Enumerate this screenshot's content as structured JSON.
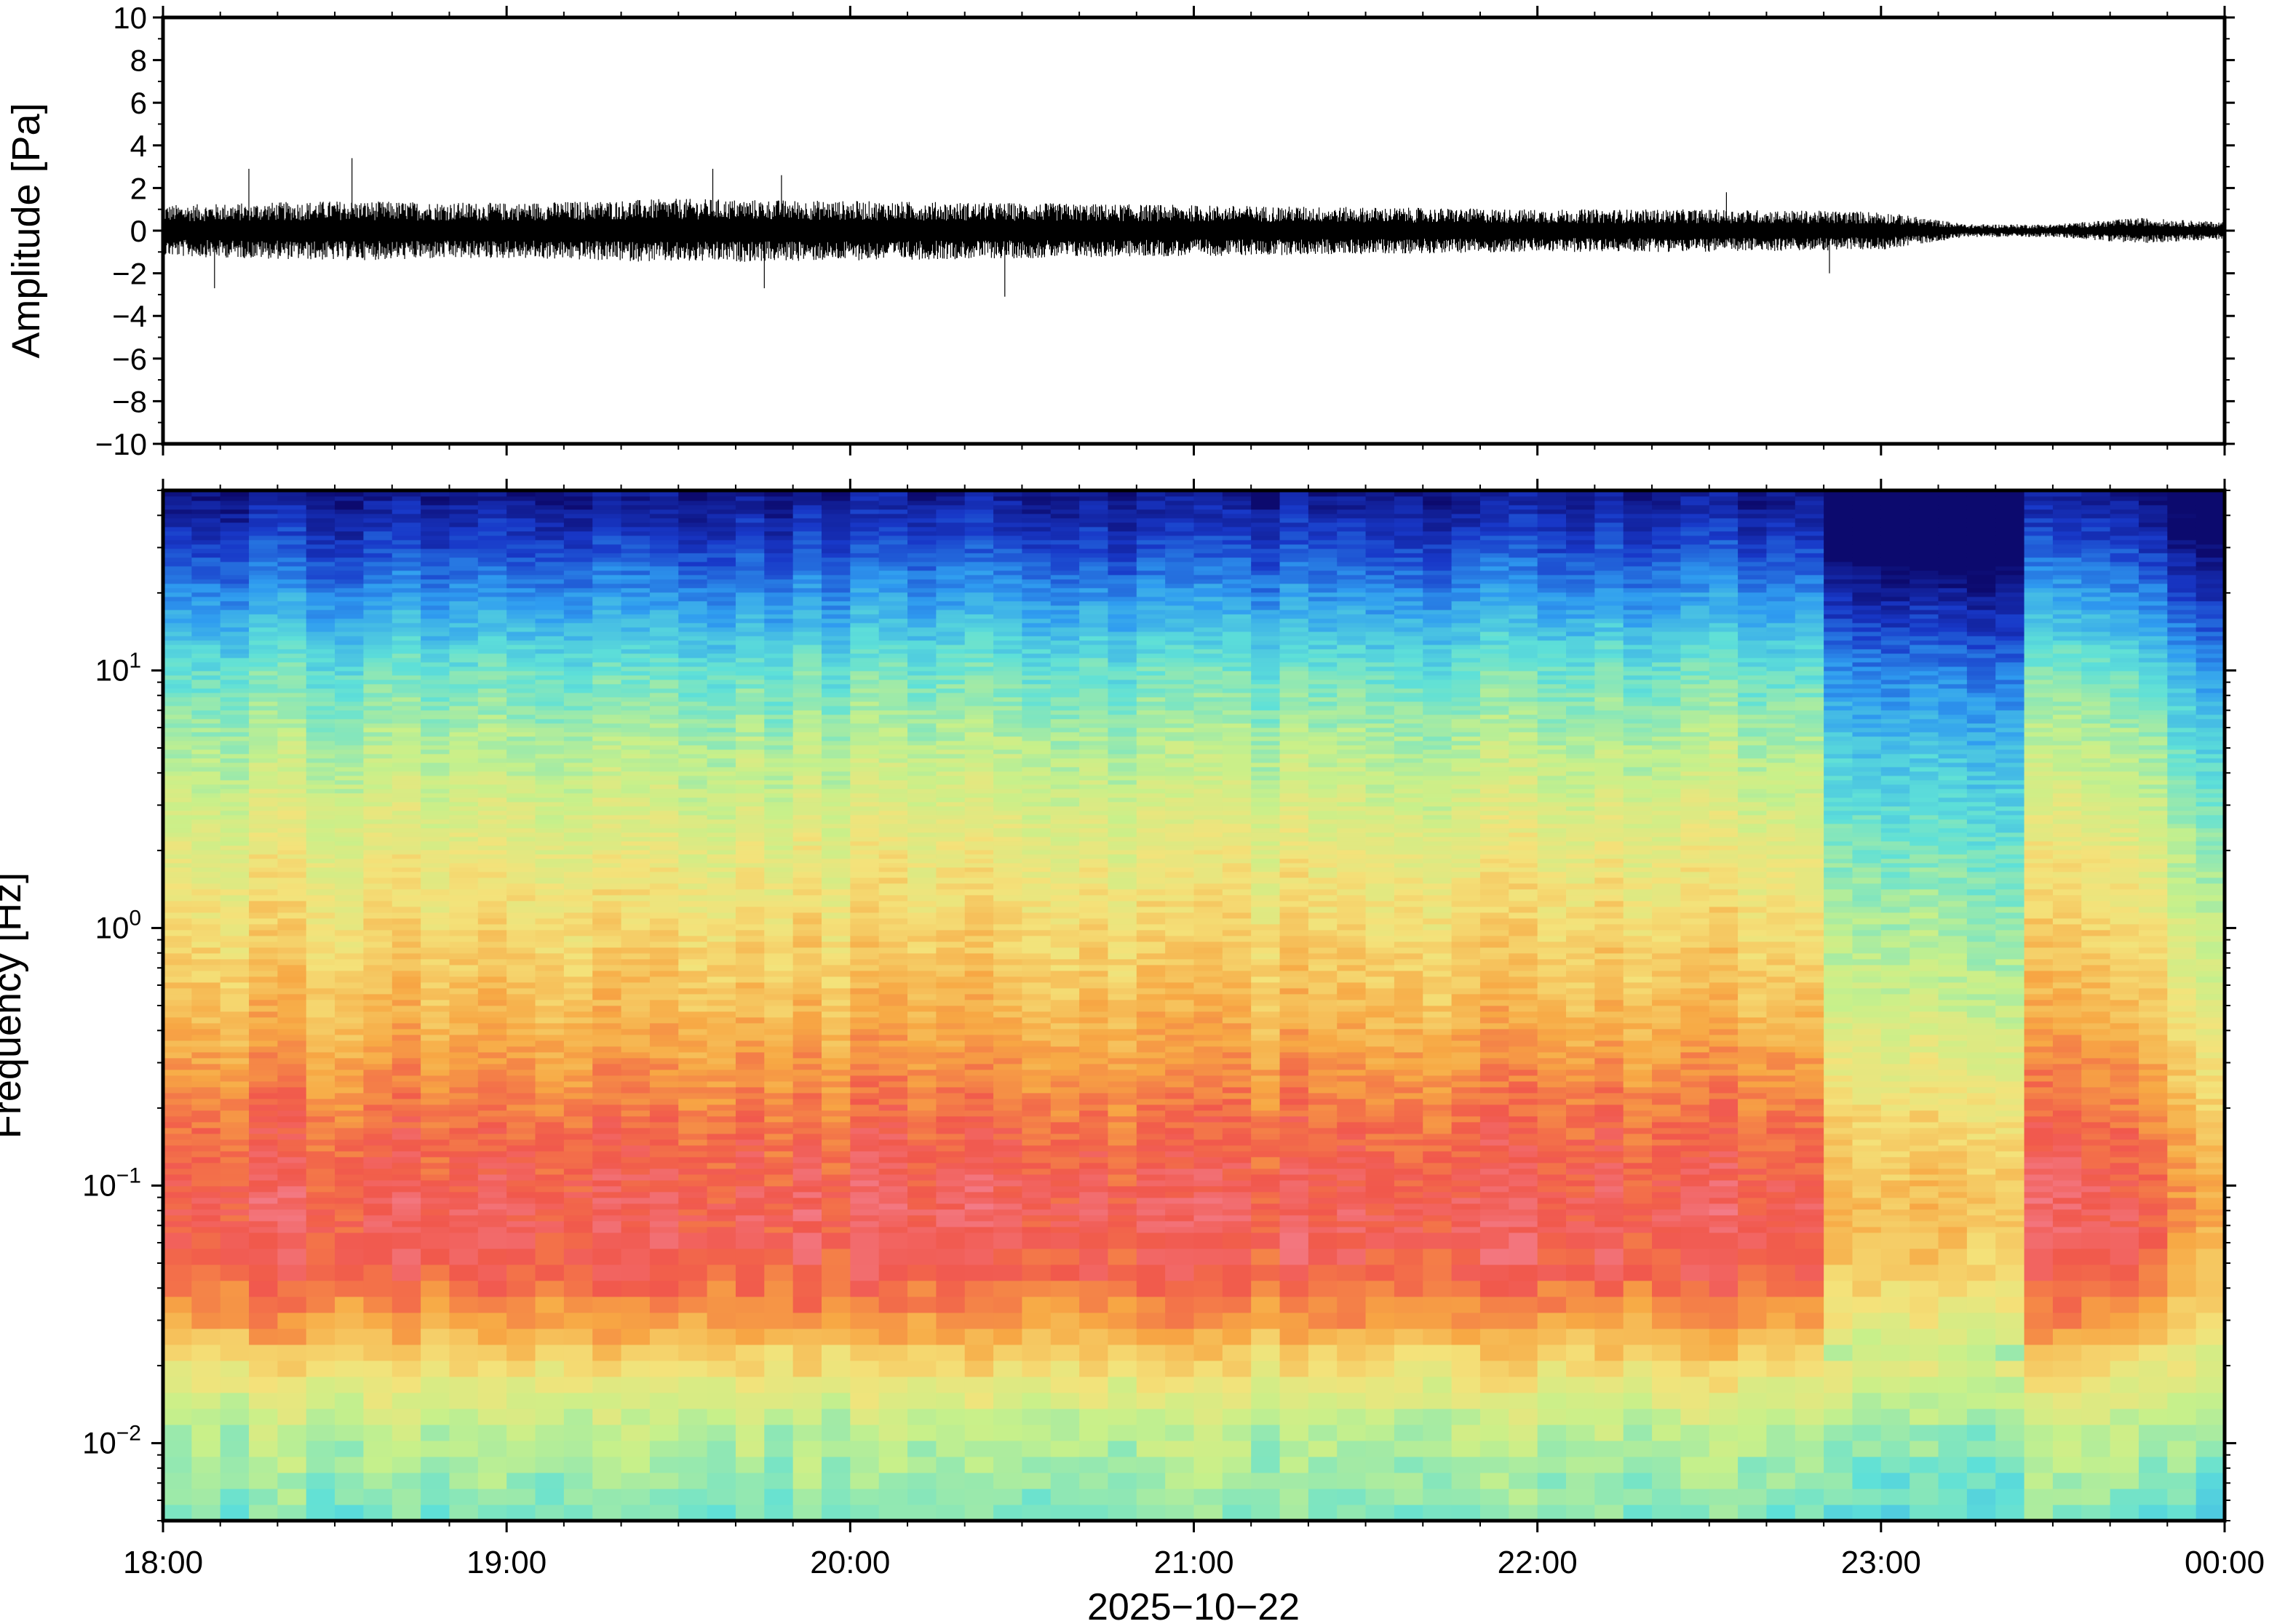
{
  "date_label": "2025−10−22",
  "chart_data": [
    {
      "type": "line",
      "panel": "waveform",
      "title": "",
      "xlabel": "",
      "ylabel": "Amplitude [Pa]",
      "ylim": [
        -10,
        10
      ],
      "xlim": [
        "18:00",
        "00:00"
      ],
      "y_ticks": [
        "10",
        "8",
        "6",
        "4",
        "2",
        "0",
        "−2",
        "−4",
        "−6",
        "−8",
        "−10"
      ],
      "y_tick_values": [
        10,
        8,
        6,
        4,
        2,
        0,
        -2,
        -4,
        -6,
        -8,
        -10
      ],
      "x_hours": [
        18,
        18.5,
        19,
        19.5,
        20,
        20.5,
        21,
        21.5,
        22,
        22.5,
        23,
        23.25,
        23.5,
        23.75,
        24
      ],
      "envelope_max": [
        1.2,
        1.4,
        1.3,
        1.5,
        1.4,
        1.3,
        1.2,
        1.1,
        1.0,
        1.0,
        0.9,
        0.3,
        0.3,
        0.6,
        0.4
      ],
      "envelope_min": [
        -1.2,
        -1.4,
        -1.3,
        -1.5,
        -1.4,
        -1.3,
        -1.2,
        -1.1,
        -1.0,
        -1.0,
        -0.9,
        -0.3,
        -0.3,
        -0.6,
        -0.4
      ],
      "spikes": [
        {
          "x": 18.25,
          "y": 2.9
        },
        {
          "x": 18.55,
          "y": 3.4
        },
        {
          "x": 19.6,
          "y": 2.9
        },
        {
          "x": 19.8,
          "y": 2.6
        },
        {
          "x": 20.45,
          "y": -3.1
        },
        {
          "x": 18.15,
          "y": -2.7
        },
        {
          "x": 19.75,
          "y": -2.7
        },
        {
          "x": 22.55,
          "y": 1.8
        },
        {
          "x": 22.85,
          "y": -2.0
        }
      ],
      "grid": false,
      "line_color": "#000000"
    },
    {
      "type": "heatmap",
      "panel": "spectrogram",
      "title": "",
      "xlabel": "2025−10−22",
      "ylabel": "Frequency [Hz]",
      "yscale": "log",
      "ylim_hz": [
        0.005,
        50
      ],
      "xlim": [
        "18:00",
        "00:00"
      ],
      "x_ticks": [
        "18:00",
        "19:00",
        "20:00",
        "21:00",
        "22:00",
        "23:00",
        "00:00"
      ],
      "x_tick_hours": [
        18,
        19,
        20,
        21,
        22,
        23,
        24
      ],
      "y_ticks": [
        {
          "base": "10",
          "exp": "1",
          "value": 10
        },
        {
          "base": "10",
          "exp": "0",
          "value": 1
        },
        {
          "base": "10",
          "exp": "−1",
          "value": 0.1
        },
        {
          "base": "10",
          "exp": "−2",
          "value": 0.01
        }
      ],
      "colormap": "rainbow",
      "level_stops": [
        {
          "level": 0.0,
          "color": "#0c0a6e"
        },
        {
          "level": 0.12,
          "color": "#1838c8"
        },
        {
          "level": 0.25,
          "color": "#2f9cf0"
        },
        {
          "level": 0.38,
          "color": "#5ee0d8"
        },
        {
          "level": 0.52,
          "color": "#c8f08a"
        },
        {
          "level": 0.64,
          "color": "#f4e27a"
        },
        {
          "level": 0.76,
          "color": "#f7a844"
        },
        {
          "level": 0.88,
          "color": "#f1584c"
        },
        {
          "level": 1.0,
          "color": "#f48aa0"
        }
      ],
      "time_columns": 72,
      "profile_freqs_hz": [
        50,
        30,
        20,
        10,
        5,
        2,
        1,
        0.5,
        0.3,
        0.15,
        0.08,
        0.05,
        0.03,
        0.02,
        0.012,
        0.007,
        0.005
      ],
      "profile_levels": [
        0.03,
        0.14,
        0.24,
        0.4,
        0.5,
        0.6,
        0.66,
        0.72,
        0.78,
        0.86,
        0.9,
        0.88,
        0.78,
        0.65,
        0.52,
        0.46,
        0.42
      ],
      "quiet_periods": [
        {
          "start_hour": 22.85,
          "end_hour": 23.45,
          "level_drop": 0.18
        },
        {
          "start_hour": 23.85,
          "end_hour": 24.0,
          "level_drop": 0.12
        }
      ],
      "grid": false
    }
  ]
}
